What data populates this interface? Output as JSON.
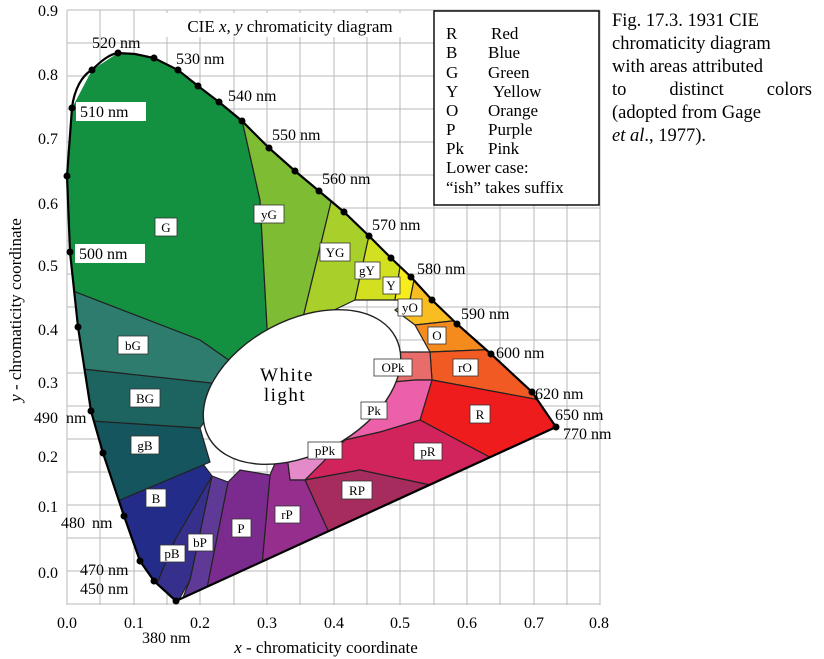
{
  "diagram": {
    "title_prefix": "CIE ",
    "title_vars": "x, y",
    "title_suffix": " chromaticity diagram",
    "x_axis_label_var": "x",
    "x_axis_label_rest": " - chromaticity coordinate",
    "y_axis_label_var": "y",
    "y_axis_label_rest": " - chromaticity  coordinate",
    "x_ticks": [
      "0.0",
      "0.1",
      "0.2",
      "0.3",
      "0.4",
      "0.5",
      "0.6",
      "0.7",
      "0.8"
    ],
    "y_ticks": [
      "0.0",
      "0.1",
      "0.2",
      "0.3",
      "0.4",
      "0.5",
      "0.6",
      "0.7",
      "0.8",
      "0.9"
    ],
    "center_label_line1": "White",
    "center_label_line2": "light",
    "wavelength_labels": [
      "520 nm",
      "530 nm",
      "540 nm",
      "550 nm",
      "510 nm",
      "560 nm",
      "570 nm",
      "500 nm",
      "580 nm",
      "590 nm",
      "600 nm",
      "620 nm",
      "650 nm",
      "770 nm",
      "490",
      "nm",
      "480",
      "nm",
      "470 nm",
      "450 nm",
      "380 nm"
    ],
    "region_labels": [
      "G",
      "yG",
      "YG",
      "gY",
      "Y",
      "yO",
      "O",
      "rO",
      "R",
      "pR",
      "RP",
      "rP",
      "P",
      "bP",
      "pB",
      "B",
      "gB",
      "BG",
      "bG",
      "OPk",
      "Pk",
      "pPk"
    ],
    "legend": {
      "entries": [
        {
          "code": "R",
          "name": "Red"
        },
        {
          "code": "B",
          "name": "Blue"
        },
        {
          "code": "G",
          "name": "Green"
        },
        {
          "code": "Y",
          "name": "Yellow"
        },
        {
          "code": "O",
          "name": "Orange"
        },
        {
          "code": "P",
          "name": "Purple"
        },
        {
          "code": "Pk",
          "name": "Pink"
        }
      ],
      "note_line1": "Lower case:",
      "note_line2": "“ish” takes suffix"
    },
    "region_colors": {
      "G": "#139040",
      "yG": "#7ebc33",
      "YG": "#a9cf2a",
      "gY": "#d2e020",
      "Y": "#f7ec1c",
      "yO": "#f9bd21",
      "O": "#f58a1d",
      "rO": "#f15a22",
      "R": "#ee1c1c",
      "pR": "#d1245c",
      "RP": "#a62c5e",
      "rP": "#952e8c",
      "P": "#7b2a8d",
      "bP": "#5e3a96",
      "pB": "#36308c",
      "B": "#242c8a",
      "gB": "#15555e",
      "BG": "#1d6460",
      "bG": "#2d7c6e",
      "OPk": "#e86d6a",
      "Pk": "#ec5fa9",
      "pPk": "#e58ac8"
    }
  },
  "caption": {
    "line1": "Fig. 17.3. 1931 CIE",
    "line2": "chromaticity diagram",
    "line3": "with areas attributed",
    "line4": "to distinct colors",
    "line5": "(adopted from Gage",
    "line6_italic": "et al",
    "line6_rest": "., 1977)."
  }
}
